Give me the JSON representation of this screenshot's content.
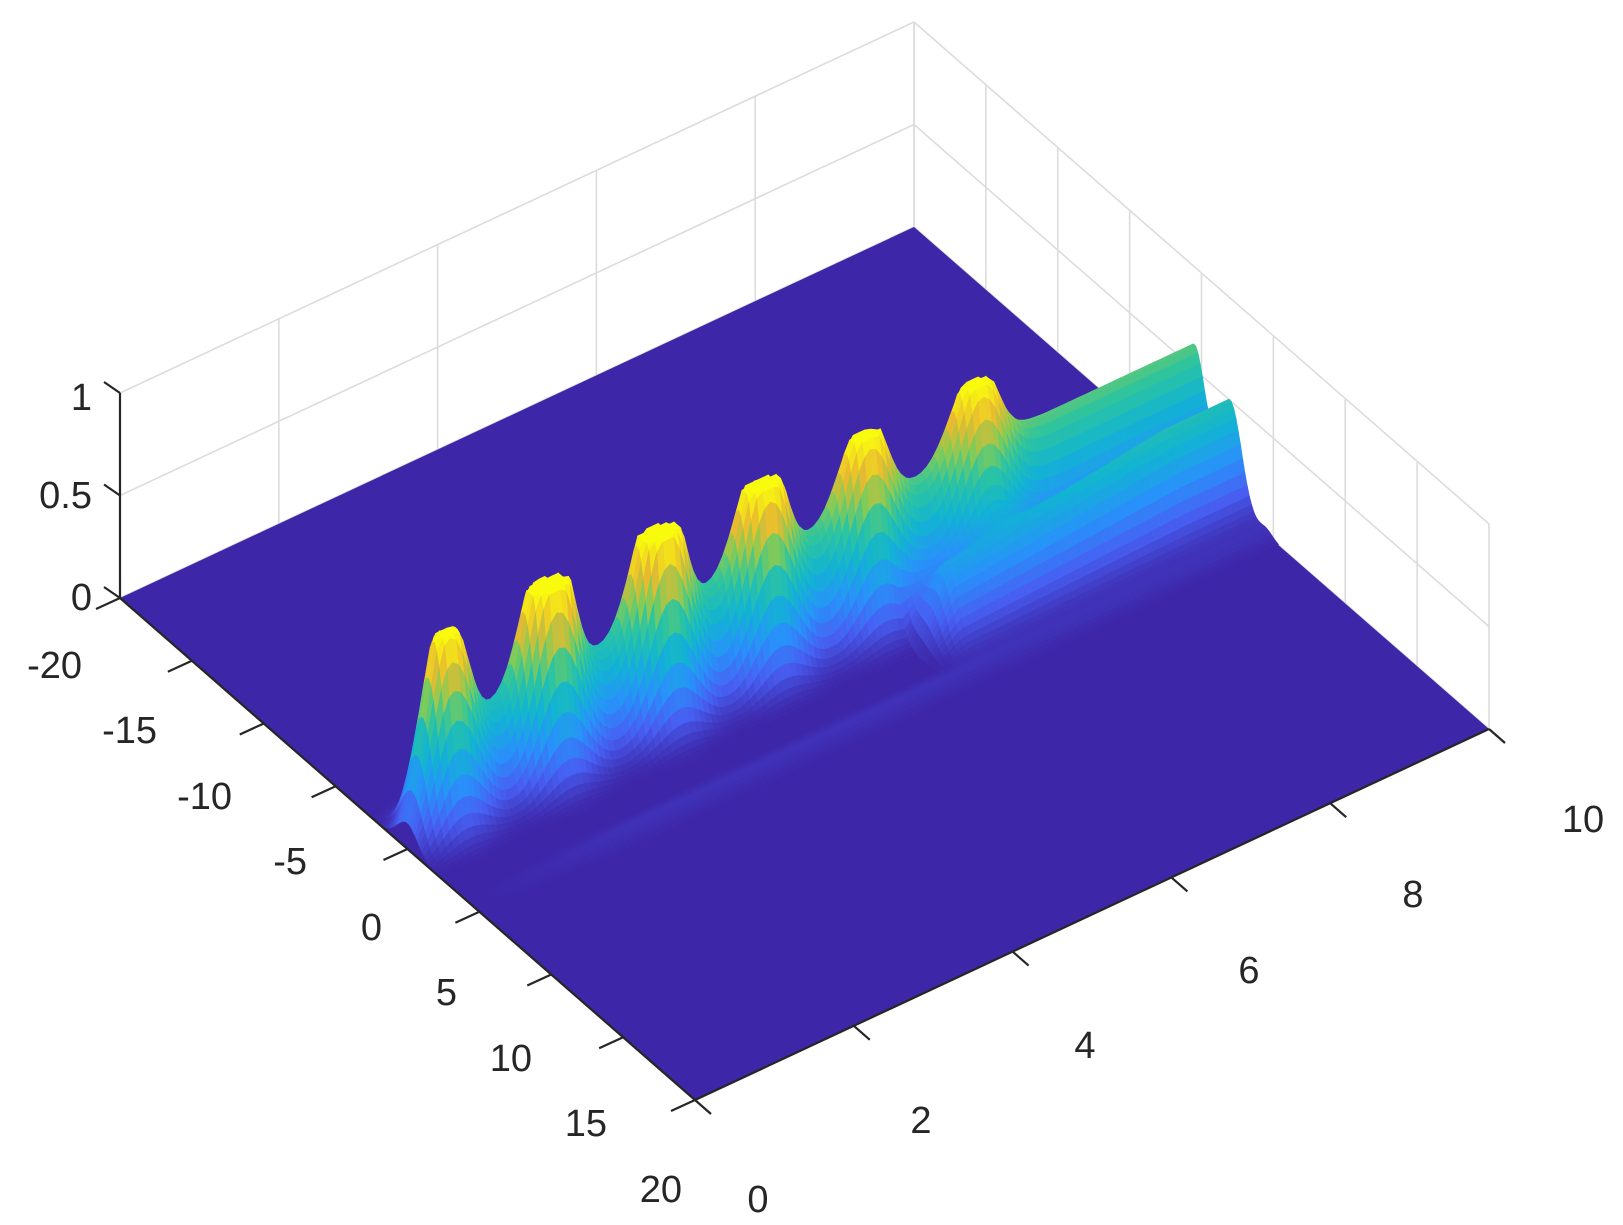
{
  "chart_data": {
    "type": "surface",
    "title": "",
    "xlabel": "",
    "ylabel": "",
    "zlabel": "",
    "x_ticks": [
      "-20",
      "-15",
      "-10",
      "-5",
      "0",
      "5",
      "10",
      "15",
      "20"
    ],
    "y_ticks": [
      "0",
      "2",
      "4",
      "6",
      "8",
      "10"
    ],
    "z_ticks": [
      "0",
      "0.5",
      "1"
    ],
    "xlim": [
      -20,
      20
    ],
    "ylim": [
      0,
      10
    ],
    "zlim": [
      0,
      1
    ],
    "grid": true,
    "colormap": "parula",
    "colors": {
      "low": "#3e26a8",
      "mid": "#1fb3d3",
      "high": "#f9fb0e",
      "grid": "#dcdcdc",
      "axis": "#262626"
    },
    "peaks": [
      {
        "x": 0.0,
        "y": 0.5,
        "z": 0.72
      },
      {
        "x": 0.0,
        "y": 1.8,
        "z": 0.9
      },
      {
        "x": 0.0,
        "y": 3.2,
        "z": 0.85
      },
      {
        "x": 0.0,
        "y": 4.5,
        "z": 0.72
      },
      {
        "x": 0.0,
        "y": 5.8,
        "z": 0.58
      },
      {
        "x": 0.0,
        "y": 7.2,
        "z": 0.52
      }
    ],
    "ridges": [
      {
        "x": -0.5,
        "y_range": [
          0,
          10
        ],
        "z_end": 0.62
      },
      {
        "x": 2.0,
        "y_range": [
          6,
          10
        ],
        "z_end": 0.5
      }
    ]
  }
}
